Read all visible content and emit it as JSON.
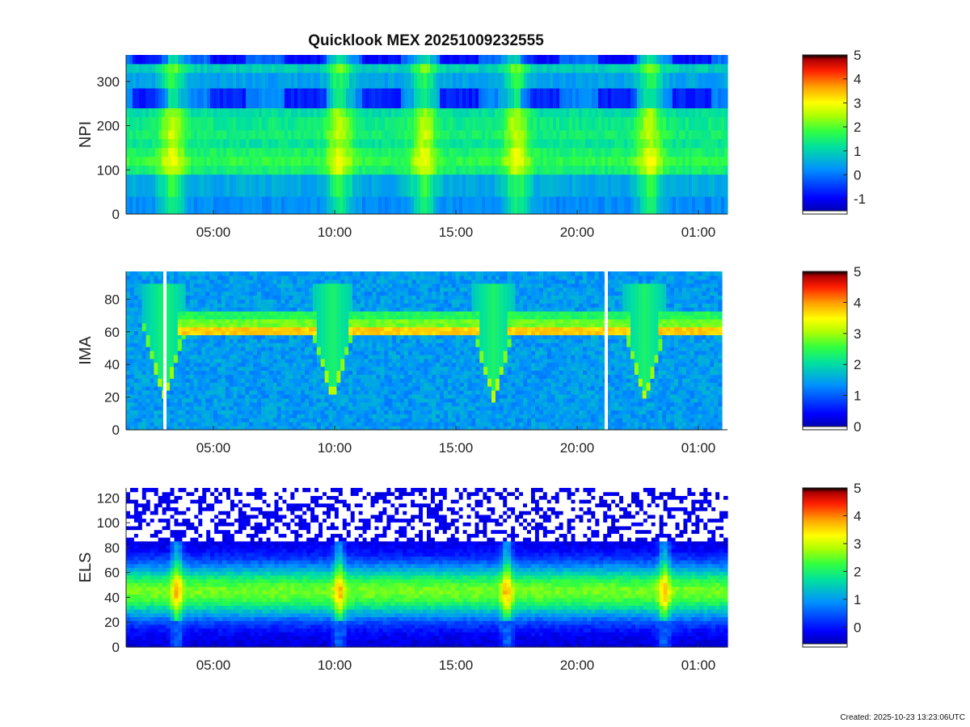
{
  "page": {
    "created": "Created: 2025-10-23 13:23:06UTC"
  },
  "chart_data": [
    {
      "type": "heatmap",
      "panel": "npi",
      "title": "Quicklook MEX 20251009232555",
      "ylabel": "NPI",
      "xtick_labels": [
        "05:00",
        "10:00",
        "15:00",
        "20:00",
        "01:00"
      ],
      "ytick_values": [
        0,
        100,
        200,
        300
      ],
      "ylim": [
        0,
        360
      ],
      "colorbar": {
        "ticks": [
          -1,
          0,
          1,
          2,
          3,
          4,
          5
        ],
        "range": [
          -1.5,
          5
        ]
      },
      "passes": [
        3.3,
        10.2,
        13.7,
        17.5,
        23.0
      ],
      "bands": [
        {
          "y": [
            0,
            40
          ],
          "level": 0.3
        },
        {
          "y": [
            40,
            90
          ],
          "level": 0.6
        },
        {
          "y": [
            90,
            110
          ],
          "level": 1.5
        },
        {
          "y": [
            110,
            130
          ],
          "level": 1.8
        },
        {
          "y": [
            130,
            150
          ],
          "level": 1.6
        },
        {
          "y": [
            150,
            170
          ],
          "level": 1.3
        },
        {
          "y": [
            170,
            190
          ],
          "level": 1.5
        },
        {
          "y": [
            190,
            220
          ],
          "level": 1.4
        },
        {
          "y": [
            220,
            240
          ],
          "level": 1.2
        },
        {
          "y": [
            240,
            285
          ],
          "level": -0.6
        },
        {
          "y": [
            285,
            320
          ],
          "level": 0.5
        },
        {
          "y": [
            320,
            340
          ],
          "level": 1.0
        },
        {
          "y": [
            340,
            360
          ],
          "level": -0.8
        }
      ]
    },
    {
      "type": "heatmap",
      "panel": "ima",
      "ylabel": "IMA",
      "xtick_labels": [
        "05:00",
        "10:00",
        "15:00",
        "20:00",
        "01:00"
      ],
      "ytick_values": [
        0,
        20,
        40,
        60,
        80
      ],
      "ylim": [
        0,
        97
      ],
      "colorbar": {
        "ticks": [
          0,
          1,
          2,
          3,
          4,
          5
        ],
        "range": [
          0,
          5
        ]
      },
      "background_level": 1.5,
      "passes": [
        3.0,
        10.0,
        16.7,
        23.0
      ],
      "data_gaps": [
        3.0,
        21.2
      ],
      "beam_lines": [
        {
          "y": 61,
          "level": 3.9
        },
        {
          "y": 66,
          "level": 3.0
        },
        {
          "y": 70,
          "level": 2.6
        }
      ]
    },
    {
      "type": "heatmap",
      "panel": "els",
      "ylabel": "ELS",
      "xtick_labels": [
        "05:00",
        "10:00",
        "15:00",
        "20:00",
        "01:00"
      ],
      "ytick_values": [
        0,
        20,
        40,
        60,
        80,
        100,
        120
      ],
      "ylim": [
        0,
        128
      ],
      "colorbar": {
        "ticks": [
          0,
          1,
          2,
          3,
          4,
          5
        ],
        "range": [
          -0.6,
          5
        ]
      },
      "peak_level": 2.6,
      "noise_floor_channel": 85,
      "passes": [
        3.5,
        10.2,
        17.1,
        23.6
      ]
    }
  ],
  "xaxis": {
    "start_hour": 1.4,
    "end_hour": 26.2,
    "tick_hours": [
      5,
      10,
      15,
      20,
      25
    ]
  },
  "colormap": [
    "#00008b",
    "#0000ff",
    "#00aaff",
    "#00ff80",
    "#aaff00",
    "#ffff00",
    "#ffaa00",
    "#ff4000",
    "#cc0000",
    "#000000"
  ]
}
